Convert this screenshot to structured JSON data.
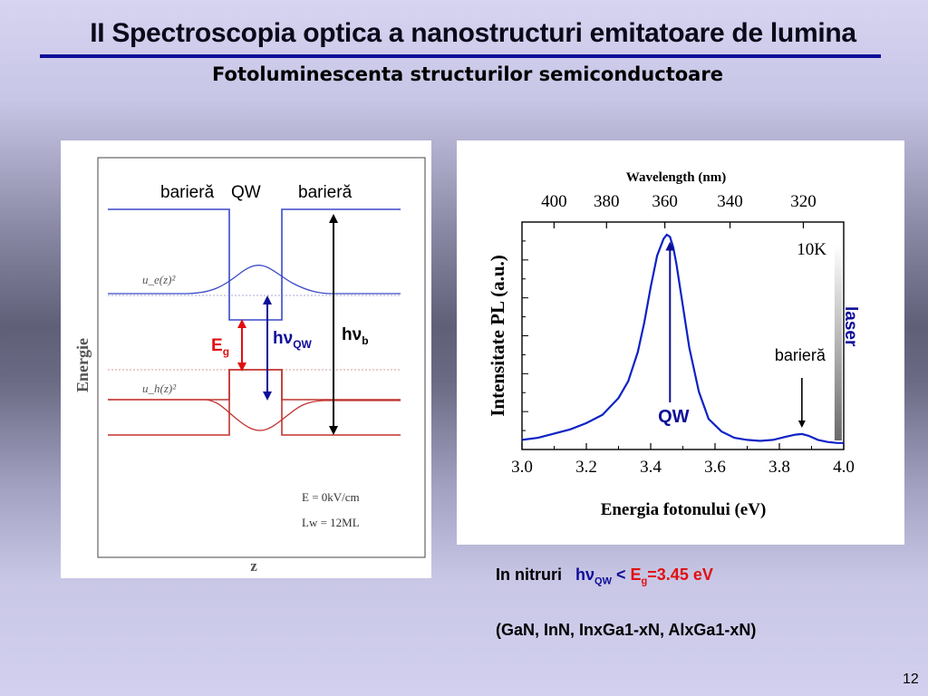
{
  "slide": {
    "title": "II Spectroscopia optica a nanostructuri emitatoare de lumina",
    "subtitle": "Fotoluminescenta structurilor semiconductoare",
    "page_number": "12",
    "colors": {
      "title_rule": "#0d0d99",
      "accent_blue": "#0d0d99",
      "accent_red": "#e01010"
    }
  },
  "band_diagram": {
    "labels": {
      "left_barrier": "barieră",
      "well": "QW",
      "right_barrier": "barieră"
    },
    "y_axis_label": "Energie",
    "x_axis_label": "z",
    "electron_wavefunction": "u_e(z)²",
    "hole_wavefunction": "u_h(z)²",
    "gap_label": {
      "main": "E",
      "sub": "g"
    },
    "qw_transition": {
      "main": "hν",
      "sub": "QW"
    },
    "barrier_transition": {
      "main": "hν",
      "sub": "b"
    },
    "params": [
      "E = 0kV/cm",
      "Lw = 12ML"
    ]
  },
  "chart_data": {
    "type": "line",
    "title": "",
    "xlabel": "Energia fotonului (eV)",
    "ylabel": "Intensitate PL (a.u.)",
    "top_axis_label": "Wavelength (nm)",
    "top_axis_ticks": [
      "400",
      "380",
      "360",
      "340",
      "320"
    ],
    "xlim": [
      3.0,
      4.0
    ],
    "x_ticks": [
      "3.0",
      "3.2",
      "3.4",
      "3.6",
      "3.8",
      "4.0"
    ],
    "y_ticks_labeled": false,
    "grid": false,
    "temperature_label": "10K",
    "series": [
      {
        "x": [
          3.0,
          3.05,
          3.1,
          3.15,
          3.2,
          3.25,
          3.3,
          3.33,
          3.36,
          3.38,
          3.4,
          3.42,
          3.44,
          3.45,
          3.46,
          3.47,
          3.48,
          3.5,
          3.52,
          3.55,
          3.58,
          3.62,
          3.66,
          3.7,
          3.74,
          3.78,
          3.82,
          3.85,
          3.87,
          3.89,
          3.92,
          3.95,
          3.98,
          4.0
        ],
        "y": [
          0.02,
          0.03,
          0.05,
          0.07,
          0.1,
          0.14,
          0.22,
          0.3,
          0.44,
          0.58,
          0.75,
          0.9,
          0.98,
          1.0,
          0.99,
          0.94,
          0.86,
          0.66,
          0.46,
          0.25,
          0.12,
          0.06,
          0.03,
          0.02,
          0.015,
          0.02,
          0.035,
          0.045,
          0.048,
          0.04,
          0.02,
          0.01,
          0.005,
          0.005
        ]
      }
    ],
    "annotations": [
      {
        "text": "QW",
        "x": 3.46
      },
      {
        "text": "barieră",
        "x": 3.87
      },
      {
        "text": "laser",
        "x": 3.98
      }
    ]
  },
  "notes": {
    "line1_prefix": "In nitruri",
    "line1_hv": "hν",
    "line1_hv_sub": "QW",
    "line1_lt": "<",
    "line1_E": "E",
    "line1_E_sub": "g",
    "line1_value": "=3.45 eV",
    "line2": "(GaN, InN, InxGa1-xN, AlxGa1-xN)"
  }
}
